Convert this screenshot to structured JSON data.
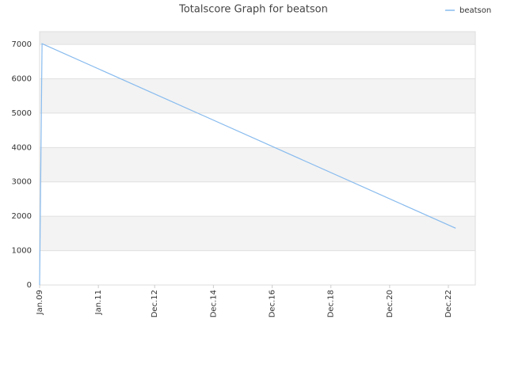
{
  "chart_data": {
    "type": "line",
    "title": "Totalscore Graph for beatson",
    "x": [
      "2009-01",
      "2009-02",
      "2023-03"
    ],
    "series": [
      {
        "name": "beatson",
        "color": "#88bbee",
        "values": [
          0,
          7020,
          1650
        ]
      }
    ],
    "xlim": [
      "2009-01",
      "2023-11"
    ],
    "xticks": [
      {
        "value": "2009-01",
        "label": "Jan.09"
      },
      {
        "value": "2011-01",
        "label": "Jan.11"
      },
      {
        "value": "2012-12",
        "label": "Dec.12"
      },
      {
        "value": "2014-12",
        "label": "Dec.14"
      },
      {
        "value": "2016-12",
        "label": "Dec.16"
      },
      {
        "value": "2018-12",
        "label": "Dec.18"
      },
      {
        "value": "2020-12",
        "label": "Dec.20"
      },
      {
        "value": "2022-12",
        "label": "Dec.22"
      }
    ],
    "ylim": [
      0,
      7370
    ],
    "yticks": [
      0,
      1000,
      2000,
      3000,
      4000,
      5000,
      6000,
      7000
    ],
    "grid": true,
    "legend": "top-right"
  }
}
